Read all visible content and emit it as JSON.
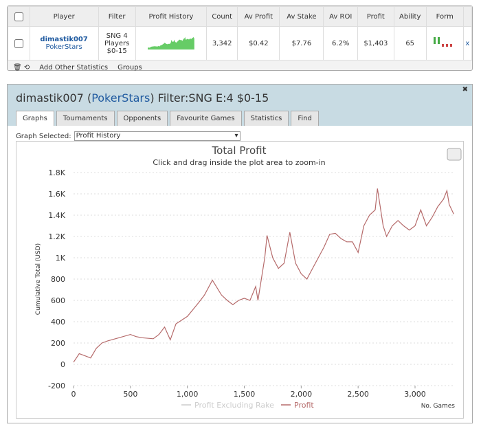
{
  "table": {
    "headers": [
      "Player",
      "Filter",
      "Profit History",
      "Count",
      "Av Profit",
      "Av Stake",
      "Av ROI",
      "Profit",
      "Ability",
      "Form"
    ],
    "row": {
      "player": "dimastik007",
      "site": "PokerStars",
      "filter": [
        "SNG 4",
        "Players",
        "$0-15"
      ],
      "count": "3,342",
      "av_profit": "$0.42",
      "av_stake": "$7.76",
      "av_roi": "6.2%",
      "profit": "$1,403",
      "ability": "65",
      "remove": "x"
    }
  },
  "toolbar": [
    "Add Other Statistics",
    "Groups"
  ],
  "panel": {
    "title_parts": [
      "dimastik007 (",
      "PokerStars",
      ") Filter:SNG E:4 $0-15"
    ],
    "tabs": [
      "Graphs",
      "Tournaments",
      "Opponents",
      "Favourite Games",
      "Statistics",
      "Find"
    ],
    "graph_selected_label": "Graph Selected:",
    "graph_selected": "Profit History"
  },
  "chart_data": {
    "type": "line",
    "title": "Total Profit",
    "subtitle": "Click and drag inside the plot area to zoom-in",
    "y_label": "Cumulative Total (USD)",
    "x_label": "No. Games",
    "x": [
      0,
      50,
      100,
      150,
      200,
      250,
      300,
      400,
      500,
      550,
      600,
      700,
      750,
      800,
      850,
      900,
      1000,
      1100,
      1150,
      1220,
      1300,
      1350,
      1400,
      1450,
      1500,
      1550,
      1600,
      1620,
      1680,
      1700,
      1750,
      1800,
      1850,
      1900,
      1950,
      2000,
      2050,
      2100,
      2150,
      2200,
      2250,
      2300,
      2350,
      2400,
      2450,
      2500,
      2550,
      2600,
      2650,
      2670,
      2720,
      2750,
      2800,
      2850,
      2900,
      2950,
      3000,
      3050,
      3100,
      3150,
      3200,
      3250,
      3280,
      3300,
      3340
    ],
    "series": [
      {
        "name": "Profit Excluding Rake",
        "color": "#cccccc"
      },
      {
        "name": "Profit",
        "color": "#b56a6a",
        "values": [
          20,
          100,
          80,
          60,
          150,
          200,
          220,
          250,
          280,
          260,
          250,
          240,
          280,
          350,
          230,
          380,
          450,
          580,
          650,
          790,
          650,
          600,
          560,
          600,
          620,
          600,
          730,
          600,
          1000,
          1210,
          1000,
          900,
          950,
          1240,
          950,
          850,
          800,
          900,
          1000,
          1100,
          1220,
          1230,
          1180,
          1150,
          1150,
          1050,
          1300,
          1400,
          1450,
          1650,
          1300,
          1200,
          1300,
          1350,
          1300,
          1260,
          1300,
          1450,
          1300,
          1380,
          1480,
          1550,
          1630,
          1500,
          1410
        ]
      }
    ],
    "xlim": [
      0,
      3350
    ],
    "xticks": [
      0,
      500,
      {
        "value": 1000,
        "label": "1,000"
      },
      {
        "value": 1500,
        "label": "1,500"
      },
      {
        "value": 2000,
        "label": "2,000"
      },
      {
        "value": 2500,
        "label": "2,500"
      },
      {
        "value": 3000,
        "label": "3,000"
      }
    ],
    "ylim": [
      -200,
      1800
    ],
    "yticks": [
      -200,
      0,
      200,
      400,
      600,
      800,
      {
        "value": 1000,
        "label": "1K"
      },
      {
        "value": 1200,
        "label": "1.2K"
      },
      {
        "value": 1400,
        "label": "1.4K"
      },
      {
        "value": 1600,
        "label": "1.6K"
      },
      {
        "value": 1800,
        "label": "1.8K"
      }
    ],
    "grid": true
  }
}
